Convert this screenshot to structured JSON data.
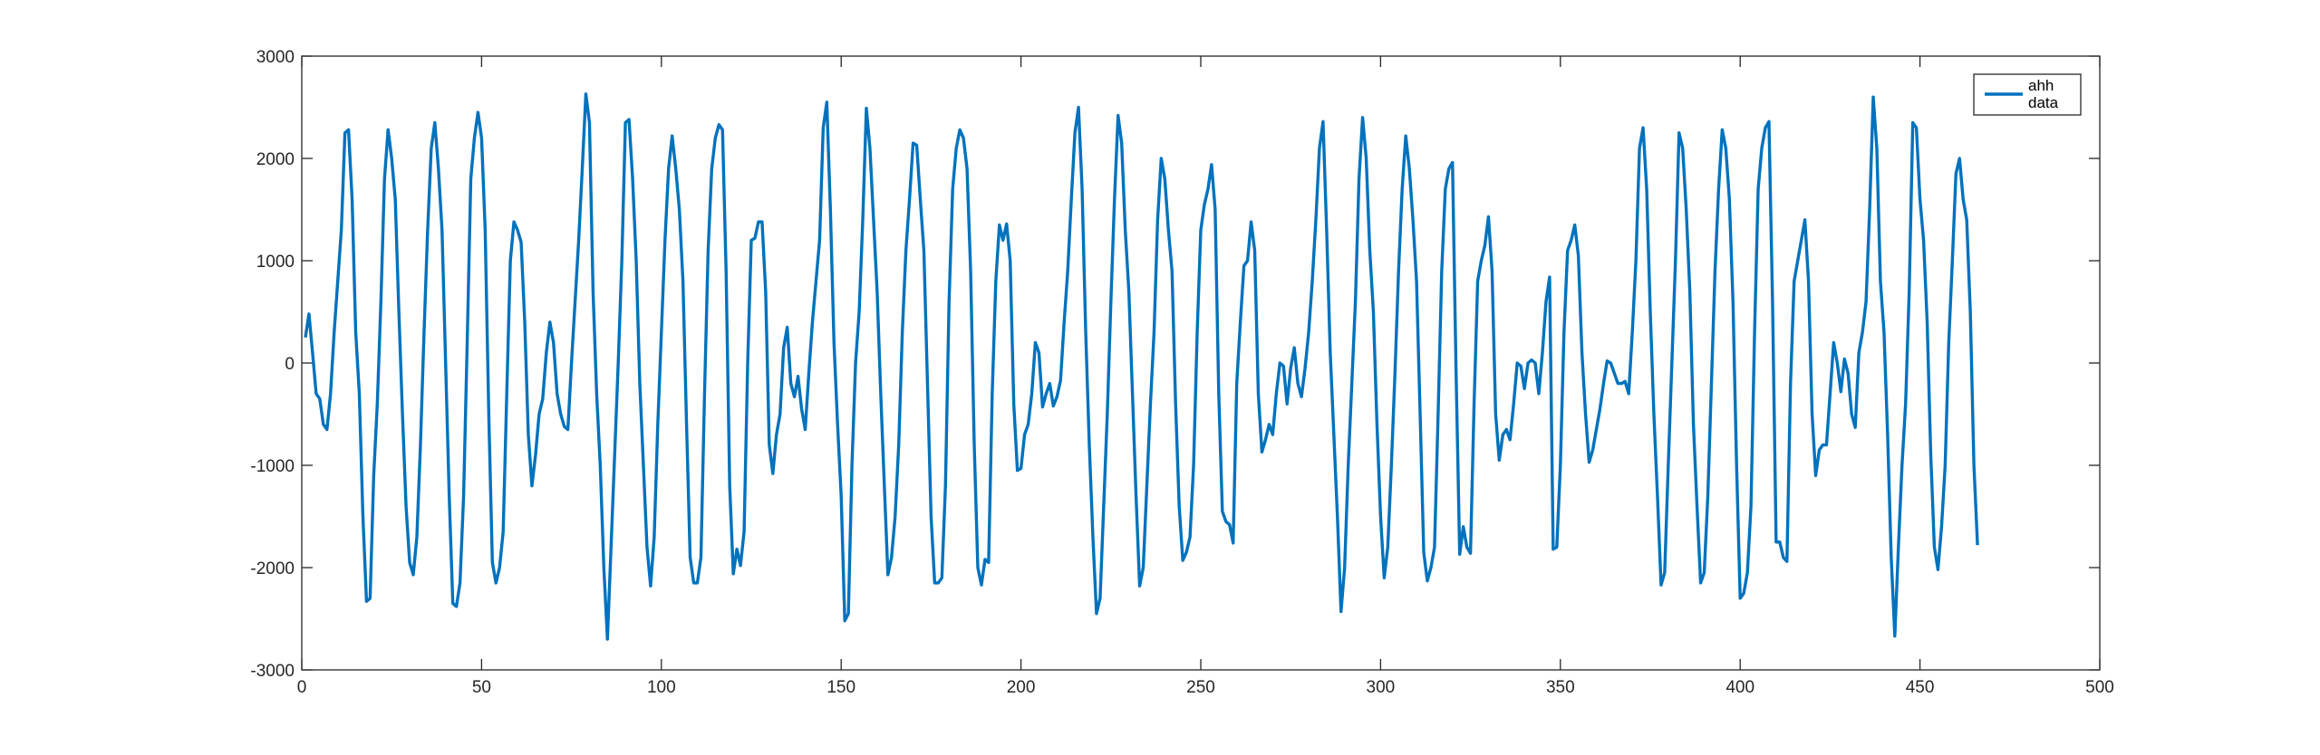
{
  "chart_data": {
    "type": "line",
    "xlim": [
      0,
      500
    ],
    "xticks": [
      0,
      50,
      100,
      150,
      200,
      250,
      300,
      350,
      400,
      450,
      500
    ],
    "ylim": [
      -3000,
      3000
    ],
    "yticks": [
      -3000,
      -2000,
      -1000,
      0,
      1000,
      2000,
      3000
    ],
    "grid": false,
    "legend": "top-right",
    "series": [
      {
        "name": "ahh data",
        "color": "#0072BD",
        "x": [
          1,
          2,
          3,
          4,
          5,
          6,
          7,
          8,
          9,
          10,
          11,
          12,
          13,
          14,
          15,
          16,
          17,
          18,
          19,
          20,
          21,
          22,
          23,
          24,
          25,
          26,
          27,
          28,
          29,
          30,
          31,
          32,
          33,
          34,
          35,
          36,
          37,
          38,
          39,
          40,
          41,
          42,
          43,
          44,
          45,
          46,
          47,
          48,
          49,
          50,
          51,
          52,
          53,
          54,
          55,
          56,
          57,
          58,
          59,
          60,
          61,
          62,
          63,
          64,
          65,
          66,
          67,
          68,
          69,
          70,
          71,
          72,
          73,
          74,
          75,
          76,
          77,
          78,
          79,
          80,
          81,
          82,
          83,
          84,
          85,
          86,
          87,
          88,
          89,
          90,
          91,
          92,
          93,
          94,
          95,
          96,
          97,
          98,
          99,
          100,
          101,
          102,
          103,
          104,
          105,
          106,
          107,
          108,
          109,
          110,
          111,
          112,
          113,
          114,
          115,
          116,
          117,
          118,
          119,
          120,
          121,
          122,
          123,
          124,
          125,
          126,
          127,
          128,
          129,
          130,
          131,
          132,
          133,
          134,
          135,
          136,
          137,
          138,
          139,
          140,
          141,
          142,
          143,
          144,
          145,
          146,
          147,
          148,
          149,
          150,
          151,
          152,
          153,
          154,
          155,
          156,
          157,
          158,
          159,
          160,
          161,
          162,
          163,
          164,
          165,
          166,
          167,
          168,
          169,
          170,
          171,
          172,
          173,
          174,
          175,
          176,
          177,
          178,
          179,
          180,
          181,
          182,
          183,
          184,
          185,
          186,
          187,
          188,
          189,
          190,
          191,
          192,
          193,
          194,
          195,
          196,
          197,
          198,
          199,
          200,
          201,
          202,
          203,
          204,
          205,
          206,
          207,
          208,
          209,
          210,
          211,
          212,
          213,
          214,
          215,
          216,
          217,
          218,
          219,
          220,
          221,
          222,
          223,
          224,
          225,
          226,
          227,
          228,
          229,
          230,
          231,
          232,
          233,
          234,
          235,
          236,
          237,
          238,
          239,
          240,
          241,
          242,
          243,
          244,
          245,
          246,
          247,
          248,
          249,
          250,
          251,
          252,
          253,
          254,
          255,
          256,
          257,
          258,
          259,
          260,
          261,
          262,
          263,
          264,
          265,
          266,
          267,
          268,
          269,
          270,
          271,
          272,
          273,
          274,
          275,
          276,
          277,
          278,
          279,
          280,
          281,
          282,
          283,
          284,
          285,
          286,
          287,
          288,
          289,
          290,
          291,
          292,
          293,
          294,
          295,
          296,
          297,
          298,
          299,
          300,
          301,
          302,
          303,
          304,
          305,
          306,
          307,
          308,
          309,
          310,
          311,
          312,
          313,
          314,
          315,
          316,
          317,
          318,
          319,
          320,
          321,
          322,
          323,
          324,
          325,
          326,
          327,
          328,
          329,
          330,
          331,
          332,
          333,
          334,
          335,
          336,
          337,
          338,
          339,
          340,
          341,
          342,
          343,
          344,
          345,
          346,
          347,
          348,
          349,
          350,
          351,
          352,
          353,
          354,
          355,
          356,
          357,
          358,
          359,
          360,
          361,
          362,
          363,
          364,
          365,
          366,
          367,
          368,
          369,
          370,
          371,
          372,
          373,
          374,
          375,
          376,
          377,
          378,
          379,
          380,
          381,
          382,
          383,
          384,
          385,
          386,
          387,
          388,
          389,
          390,
          391,
          392,
          393,
          394,
          395,
          396,
          397,
          398,
          399,
          400,
          401,
          402,
          403,
          404,
          405,
          406,
          407,
          408,
          409,
          410,
          411,
          412,
          413,
          414,
          415,
          416,
          417,
          418,
          419,
          420,
          421,
          422,
          423,
          424,
          425,
          426,
          427,
          428,
          429,
          430,
          431,
          432,
          433,
          434,
          435,
          436,
          437,
          438,
          439,
          440,
          441,
          442,
          443,
          444,
          445,
          446,
          447,
          448,
          449,
          450,
          451,
          452,
          453,
          454,
          455,
          456,
          457,
          458,
          459,
          460,
          461,
          462,
          463,
          464,
          465,
          466
        ],
        "values": [
          250,
          480,
          100,
          -300,
          -350,
          -600,
          -650,
          -300,
          300,
          800,
          1300,
          2250,
          2280,
          1600,
          300,
          -300,
          -1500,
          -2330,
          -2300,
          -1100,
          -400,
          600,
          1800,
          2280,
          2000,
          1600,
          500,
          -500,
          -1400,
          -1950,
          -2070,
          -1700,
          -800,
          300,
          1300,
          2100,
          2350,
          1900,
          1300,
          0,
          -1300,
          -2350,
          -2380,
          -2150,
          -1300,
          200,
          1800,
          2200,
          2450,
          2200,
          1300,
          -500,
          -1950,
          -2150,
          -2000,
          -1650,
          -300,
          1000,
          1380,
          1300,
          1180,
          400,
          -700,
          -1200,
          -900,
          -500,
          -350,
          100,
          400,
          200,
          -300,
          -500,
          -620,
          -650,
          0,
          600,
          1200,
          1900,
          2630,
          2350,
          700,
          -300,
          -1000,
          -2000,
          -2700,
          -1800,
          -900,
          0,
          1000,
          2350,
          2380,
          1800,
          1000,
          -200,
          -1000,
          -1800,
          -2180,
          -1700,
          -600,
          300,
          1200,
          1900,
          2220,
          1900,
          1500,
          800,
          -600,
          -1900,
          -2150,
          -2150,
          -1900,
          -300,
          1100,
          1900,
          2200,
          2330,
          2280,
          900,
          -1200,
          -2060,
          -1820,
          -1980,
          -1650,
          0,
          1200,
          1220,
          1380,
          1380,
          700,
          -800,
          -1080,
          -700,
          -500,
          150,
          350,
          -200,
          -330,
          -130,
          -450,
          -650,
          -100,
          400,
          800,
          1200,
          2300,
          2550,
          1500,
          200,
          -600,
          -1300,
          -2520,
          -2450,
          -1000,
          0,
          500,
          1400,
          2490,
          2100,
          1400,
          700,
          -300,
          -1200,
          -2070,
          -1900,
          -1500,
          -800,
          300,
          1100,
          1600,
          2150,
          2130,
          1600,
          1100,
          -200,
          -1500,
          -2150,
          -2150,
          -2100,
          -1200,
          600,
          1700,
          2100,
          2280,
          2200,
          1900,
          900,
          -800,
          -2000,
          -2170,
          -1920,
          -1950,
          -300,
          800,
          1350,
          1200,
          1360,
          1000,
          -400,
          -1050,
          -1030,
          -700,
          -600,
          -300,
          200,
          100,
          -430,
          -300,
          -200,
          -420,
          -330,
          -170,
          400,
          900,
          1600,
          2250,
          2500,
          1700,
          300,
          -800,
          -1700,
          -2450,
          -2300,
          -1400,
          -500,
          600,
          1600,
          2420,
          2150,
          1300,
          700,
          -300,
          -1300,
          -2180,
          -2000,
          -1200,
          -400,
          300,
          1400,
          2000,
          1800,
          1300,
          900,
          -400,
          -1400,
          -1930,
          -1850,
          -1700,
          -1000,
          300,
          1300,
          1550,
          1700,
          1940,
          1500,
          -300,
          -1450,
          -1550,
          -1580,
          -1760,
          -200,
          400,
          950,
          1000,
          1380,
          1100,
          -300,
          -870,
          -750,
          -600,
          -700,
          -300,
          0,
          -30,
          -400,
          -50,
          150,
          -200,
          -330,
          -50,
          300,
          800,
          1400,
          2100,
          2360,
          1300,
          100,
          -700,
          -1500,
          -2430,
          -2000,
          -1000,
          -200,
          600,
          1800,
          2400,
          2000,
          1100,
          500,
          -600,
          -1500,
          -2100,
          -1800,
          -1000,
          -100,
          900,
          1700,
          2220,
          1900,
          1400,
          800,
          -500,
          -1850,
          -2130,
          -2000,
          -1800,
          -500,
          900,
          1700,
          1900,
          1960,
          -100,
          -1870,
          -1600,
          -1800,
          -1860,
          -400,
          800,
          1000,
          1150,
          1430,
          900,
          -500,
          -950,
          -700,
          -650,
          -750,
          -400,
          0,
          -30,
          -250,
          0,
          30,
          0,
          -300,
          100,
          600,
          840,
          -1820,
          -1800,
          -1000,
          300,
          1100,
          1200,
          1350,
          1050,
          100,
          -500,
          -970,
          -850,
          -650,
          -450,
          -200,
          20,
          0,
          -100,
          -200,
          -200,
          -180,
          -300,
          300,
          1000,
          2100,
          2300,
          1700,
          500,
          -500,
          -1300,
          -2170,
          -2050,
          -1000,
          0,
          1000,
          2250,
          2100,
          1500,
          700,
          -600,
          -1400,
          -2150,
          -2050,
          -1300,
          -200,
          900,
          1700,
          2280,
          2100,
          1600,
          600,
          -1000,
          -2300,
          -2250,
          -2050,
          -1400,
          300,
          1700,
          2100,
          2300,
          2360,
          600,
          -1750,
          -1750,
          -1900,
          -1940,
          -200,
          800,
          1000,
          1200,
          1400,
          800,
          -500,
          -1100,
          -850,
          -800,
          -800,
          -300,
          200,
          0,
          -280,
          40,
          -100,
          -500,
          -630,
          100,
          300,
          600,
          1500,
          2600,
          2100,
          800,
          300,
          -700,
          -1900,
          -2670,
          -1800,
          -1000,
          -400,
          700,
          2350,
          2300,
          1600,
          1200,
          400,
          -900,
          -1800,
          -2020,
          -1600,
          -1000,
          200,
          1000,
          1850,
          2000,
          1600,
          1400,
          500,
          -1000,
          -1780
        ]
      }
    ]
  }
}
